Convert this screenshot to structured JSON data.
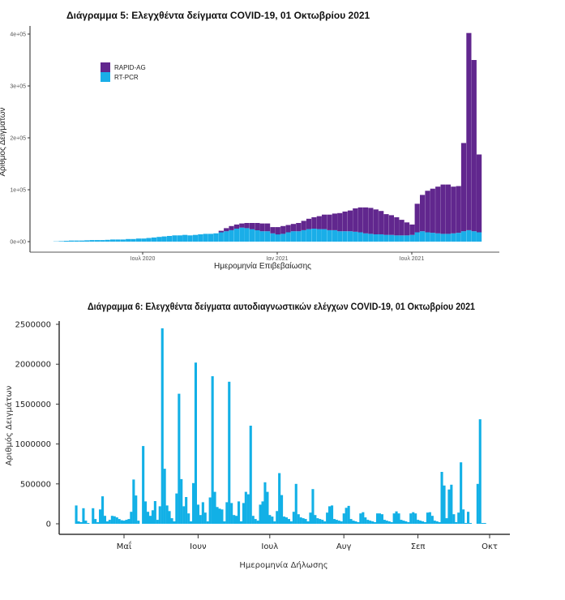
{
  "chart_data": [
    {
      "type": "bar",
      "stacked": true,
      "title": "Διάγραμμα 5: Ελεγχθέντα δείγματα COVID-19, 01 Οκτωβρίου 2021",
      "xlabel": "Ημερομηνία Επιβεβαίωσης",
      "ylabel": "Αριθμός Δειγμάτων",
      "ylim": [
        0,
        400000
      ],
      "yticks": [
        "0e+00",
        "1e+05",
        "2e+05",
        "3e+05",
        "4e+05"
      ],
      "xticks": [
        "Ιουλ 2020",
        "Ιαν 2021",
        "Ιουλ 2021"
      ],
      "legend_position": "top-left",
      "grid": false,
      "x": [
        "2020-03-02",
        "2020-03-09",
        "2020-03-16",
        "2020-03-23",
        "2020-03-30",
        "2020-04-06",
        "2020-04-13",
        "2020-04-20",
        "2020-04-27",
        "2020-05-04",
        "2020-05-11",
        "2020-05-18",
        "2020-05-25",
        "2020-06-01",
        "2020-06-08",
        "2020-06-15",
        "2020-06-22",
        "2020-06-29",
        "2020-07-06",
        "2020-07-13",
        "2020-07-20",
        "2020-07-27",
        "2020-08-03",
        "2020-08-10",
        "2020-08-17",
        "2020-08-24",
        "2020-08-31",
        "2020-09-07",
        "2020-09-14",
        "2020-09-21",
        "2020-09-28",
        "2020-10-05",
        "2020-10-12",
        "2020-10-19",
        "2020-10-26",
        "2020-11-02",
        "2020-11-09",
        "2020-11-16",
        "2020-11-23",
        "2020-11-30",
        "2020-12-07",
        "2020-12-14",
        "2020-12-21",
        "2020-12-28",
        "2021-01-04",
        "2021-01-11",
        "2021-01-18",
        "2021-01-25",
        "2021-02-01",
        "2021-02-08",
        "2021-02-15",
        "2021-02-22",
        "2021-03-01",
        "2021-03-08",
        "2021-03-15",
        "2021-03-22",
        "2021-03-29",
        "2021-04-05",
        "2021-04-12",
        "2021-04-19",
        "2021-04-26",
        "2021-05-03",
        "2021-05-10",
        "2021-05-17",
        "2021-05-24",
        "2021-05-31",
        "2021-06-07",
        "2021-06-14",
        "2021-06-21",
        "2021-06-28",
        "2021-07-05",
        "2021-07-12",
        "2021-07-19",
        "2021-07-26",
        "2021-08-02",
        "2021-08-09",
        "2021-08-16",
        "2021-08-23",
        "2021-08-30",
        "2021-09-06",
        "2021-09-13",
        "2021-09-20",
        "2021-09-27"
      ],
      "series": [
        {
          "name": "RT-PCR",
          "color": "#1aaee8",
          "values": [
            500,
            1000,
            1500,
            2000,
            2000,
            2000,
            2500,
            3000,
            3000,
            3000,
            3500,
            4000,
            4000,
            4000,
            5000,
            5000,
            6000,
            6000,
            7000,
            8000,
            9000,
            10000,
            11000,
            12000,
            12000,
            13000,
            12000,
            13000,
            14000,
            15000,
            15000,
            16000,
            18000,
            20000,
            22000,
            25000,
            27000,
            26000,
            24000,
            22000,
            20000,
            20000,
            16000,
            14000,
            15000,
            18000,
            20000,
            20000,
            22000,
            24000,
            25000,
            24000,
            24000,
            22000,
            22000,
            20000,
            20000,
            20000,
            19000,
            18000,
            16000,
            15000,
            14000,
            14000,
            13000,
            13000,
            12000,
            12000,
            12000,
            13000,
            18000,
            20000,
            18000,
            17000,
            16000,
            15000,
            15000,
            16000,
            17000,
            20000,
            22000,
            20000,
            18000
          ]
        },
        {
          "name": "RAPID-AG",
          "color": "#61278e",
          "values": [
            0,
            0,
            0,
            0,
            0,
            0,
            0,
            0,
            0,
            0,
            0,
            0,
            0,
            0,
            0,
            0,
            0,
            0,
            0,
            0,
            0,
            0,
            0,
            0,
            0,
            0,
            0,
            0,
            0,
            0,
            0,
            0,
            3000,
            6000,
            8000,
            8000,
            8000,
            10000,
            12000,
            14000,
            15000,
            15000,
            12000,
            14000,
            15000,
            14000,
            14000,
            16000,
            18000,
            20000,
            22000,
            25000,
            28000,
            30000,
            32000,
            35000,
            38000,
            40000,
            45000,
            48000,
            50000,
            50000,
            48000,
            45000,
            40000,
            38000,
            35000,
            30000,
            25000,
            20000,
            55000,
            70000,
            80000,
            85000,
            90000,
            95000,
            95000,
            90000,
            90000,
            170000,
            380000,
            330000,
            150000
          ]
        }
      ]
    },
    {
      "type": "bar",
      "title": "Διάγραμμα 6: Ελεγχθέντα δείγματα αυτοδιαγνωστικών ελέγχων COVID-19, 01 Οκτωβρίου 2021",
      "xlabel": "Ημερομηνία Δήλωσης",
      "ylabel": "Αριθμός Δειγμάτων",
      "ylim": [
        0,
        2500000
      ],
      "yticks": [
        "0",
        "500000",
        "1000000",
        "1500000",
        "2000000",
        "2500000"
      ],
      "xticks": [
        "Μαΐ",
        "Ιουν",
        "Ιουλ",
        "Αυγ",
        "Σεπ",
        "Οκτ"
      ],
      "grid": false,
      "color": "#12b0e6",
      "x": [
        "2021-04-11",
        "2021-04-12",
        "2021-04-13",
        "2021-04-14",
        "2021-04-15",
        "2021-04-16",
        "2021-04-17",
        "2021-04-18",
        "2021-04-19",
        "2021-04-20",
        "2021-04-21",
        "2021-04-22",
        "2021-04-23",
        "2021-04-24",
        "2021-04-25",
        "2021-04-26",
        "2021-04-27",
        "2021-04-28",
        "2021-04-29",
        "2021-04-30",
        "2021-05-01",
        "2021-05-02",
        "2021-05-03",
        "2021-05-04",
        "2021-05-05",
        "2021-05-06",
        "2021-05-07",
        "2021-05-08",
        "2021-05-09",
        "2021-05-10",
        "2021-05-11",
        "2021-05-12",
        "2021-05-13",
        "2021-05-14",
        "2021-05-15",
        "2021-05-16",
        "2021-05-17",
        "2021-05-18",
        "2021-05-19",
        "2021-05-20",
        "2021-05-21",
        "2021-05-22",
        "2021-05-23",
        "2021-05-24",
        "2021-05-25",
        "2021-05-26",
        "2021-05-27",
        "2021-05-28",
        "2021-05-29",
        "2021-05-30",
        "2021-05-31",
        "2021-06-01",
        "2021-06-02",
        "2021-06-03",
        "2021-06-04",
        "2021-06-05",
        "2021-06-06",
        "2021-06-07",
        "2021-06-08",
        "2021-06-09",
        "2021-06-10",
        "2021-06-11",
        "2021-06-12",
        "2021-06-13",
        "2021-06-14",
        "2021-06-15",
        "2021-06-16",
        "2021-06-17",
        "2021-06-18",
        "2021-06-19",
        "2021-06-20",
        "2021-06-21",
        "2021-06-22",
        "2021-06-23",
        "2021-06-24",
        "2021-06-25",
        "2021-06-26",
        "2021-06-27",
        "2021-06-28",
        "2021-06-29",
        "2021-06-30",
        "2021-07-01",
        "2021-07-02",
        "2021-07-03",
        "2021-07-04",
        "2021-07-05",
        "2021-07-06",
        "2021-07-07",
        "2021-07-08",
        "2021-07-09",
        "2021-07-10",
        "2021-07-11",
        "2021-07-12",
        "2021-07-13",
        "2021-07-14",
        "2021-07-15",
        "2021-07-16",
        "2021-07-17",
        "2021-07-18",
        "2021-07-19",
        "2021-07-20",
        "2021-07-21",
        "2021-07-22",
        "2021-07-23",
        "2021-07-24",
        "2021-07-25",
        "2021-07-26",
        "2021-07-27",
        "2021-07-28",
        "2021-07-29",
        "2021-07-30",
        "2021-07-31",
        "2021-08-01",
        "2021-08-02",
        "2021-08-03",
        "2021-08-04",
        "2021-08-05",
        "2021-08-06",
        "2021-08-07",
        "2021-08-08",
        "2021-08-09",
        "2021-08-10",
        "2021-08-11",
        "2021-08-12",
        "2021-08-13",
        "2021-08-14",
        "2021-08-15",
        "2021-08-16",
        "2021-08-17",
        "2021-08-18",
        "2021-08-19",
        "2021-08-20",
        "2021-08-21",
        "2021-08-22",
        "2021-08-23",
        "2021-08-24",
        "2021-08-25",
        "2021-08-26",
        "2021-08-27",
        "2021-08-28",
        "2021-08-29",
        "2021-08-30",
        "2021-08-31",
        "2021-09-01",
        "2021-09-02",
        "2021-09-03",
        "2021-09-04",
        "2021-09-05",
        "2021-09-06",
        "2021-09-07",
        "2021-09-08",
        "2021-09-09",
        "2021-09-10",
        "2021-09-11",
        "2021-09-12",
        "2021-09-13",
        "2021-09-14",
        "2021-09-15",
        "2021-09-16",
        "2021-09-17",
        "2021-09-18",
        "2021-09-19",
        "2021-09-20",
        "2021-09-21",
        "2021-09-22",
        "2021-09-23",
        "2021-09-24",
        "2021-09-25",
        "2021-09-26",
        "2021-09-27",
        "2021-09-28",
        "2021-09-29",
        "2021-09-30"
      ],
      "values": [
        230000,
        30000,
        20000,
        195000,
        40000,
        10000,
        0,
        195000,
        60000,
        20000,
        180000,
        345000,
        100000,
        30000,
        50000,
        100000,
        95000,
        80000,
        60000,
        45000,
        40000,
        50000,
        60000,
        150000,
        555000,
        355000,
        40000,
        0,
        975000,
        280000,
        150000,
        100000,
        170000,
        285000,
        50000,
        220000,
        2450000,
        690000,
        230000,
        160000,
        70000,
        30000,
        380000,
        1630000,
        560000,
        220000,
        335000,
        130000,
        30000,
        510000,
        2020000,
        240000,
        110000,
        270000,
        140000,
        30000,
        330000,
        1850000,
        400000,
        210000,
        190000,
        180000,
        30000,
        270000,
        1780000,
        260000,
        110000,
        100000,
        280000,
        30000,
        260000,
        400000,
        370000,
        1230000,
        100000,
        60000,
        40000,
        240000,
        280000,
        520000,
        400000,
        110000,
        90000,
        30000,
        160000,
        635000,
        360000,
        90000,
        80000,
        60000,
        30000,
        150000,
        500000,
        120000,
        80000,
        70000,
        60000,
        30000,
        140000,
        435000,
        110000,
        70000,
        60000,
        50000,
        30000,
        140000,
        220000,
        230000,
        60000,
        50000,
        40000,
        30000,
        130000,
        200000,
        225000,
        60000,
        40000,
        30000,
        20000,
        130000,
        145000,
        80000,
        50000,
        40000,
        30000,
        20000,
        130000,
        130000,
        120000,
        50000,
        40000,
        30000,
        20000,
        130000,
        155000,
        130000,
        50000,
        40000,
        30000,
        20000,
        130000,
        145000,
        130000,
        50000,
        40000,
        30000,
        20000,
        140000,
        145000,
        100000,
        40000,
        30000,
        20000,
        650000,
        480000,
        70000,
        430000,
        490000,
        120000,
        20000,
        140000,
        770000,
        180000,
        10000,
        150000,
        10000,
        0,
        0,
        500000,
        1310000,
        10000,
        10000,
        0
      ]
    }
  ]
}
